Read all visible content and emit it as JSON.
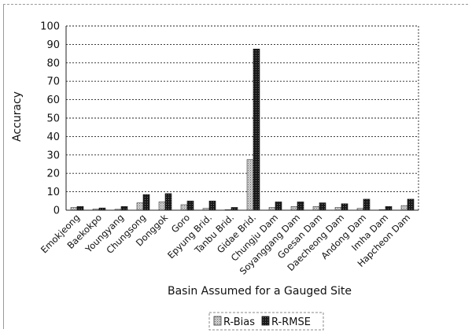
{
  "chart_data": {
    "type": "bar",
    "title": "",
    "xlabel": "Basin Assumed for a Gauged Site",
    "ylabel": "Accuracy",
    "ylim": [
      0,
      100
    ],
    "yticks": [
      0,
      10,
      20,
      30,
      40,
      50,
      60,
      70,
      80,
      90,
      100
    ],
    "grid": true,
    "legend": "bottom-center",
    "categories": [
      "Emokjeong",
      "Baekokpo",
      "Youngyang",
      "Chungsong",
      "Donggok",
      "Goro",
      "Epyung Brid.",
      "Tanbu Brid.",
      "Gidae Brid.",
      "Chungju Dam",
      "Soyanggang Dam",
      "Goesan Dam",
      "Daecheong Dam",
      "Andong Dam",
      "Imha Dam",
      "Hapcheon Dam"
    ],
    "series": [
      {
        "name": "R-Bias",
        "values": [
          1.5,
          0.6,
          0.5,
          4.0,
          4.5,
          3.0,
          1.0,
          0.3,
          27.5,
          1.5,
          2.0,
          2.0,
          1.5,
          1.0,
          0.3,
          2.5
        ],
        "color": "#b8b8b8",
        "pattern": "dots"
      },
      {
        "name": "R-RMSE",
        "values": [
          2.0,
          1.2,
          2.0,
          8.5,
          9.0,
          5.0,
          5.0,
          1.5,
          87.5,
          4.5,
          4.5,
          4.0,
          3.5,
          6.0,
          2.0,
          6.0
        ],
        "color": "#2a2a2a",
        "pattern": "crosshatch"
      }
    ]
  }
}
